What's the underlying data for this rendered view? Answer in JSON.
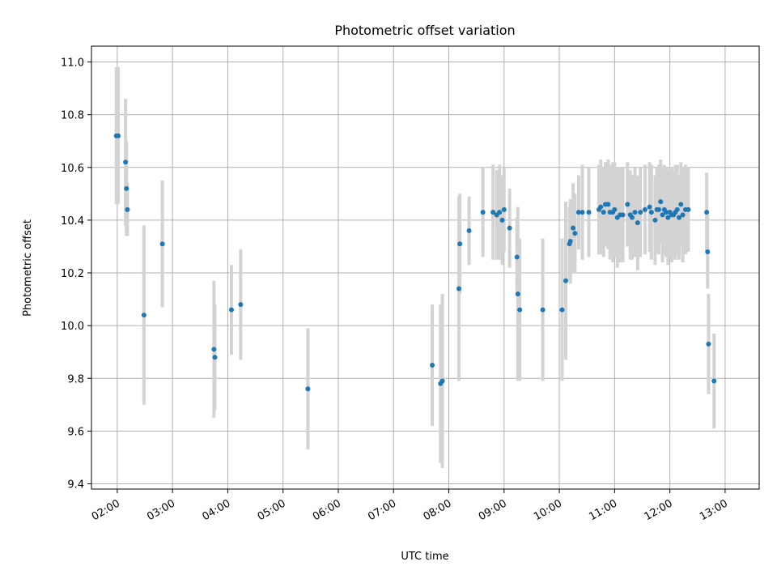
{
  "chart_data": {
    "type": "scatter",
    "title": "Photometric offset variation",
    "xlabel": "UTC time",
    "ylabel": "Photometric offset",
    "x_tick_labels": [
      "02:00",
      "03:00",
      "04:00",
      "05:00",
      "06:00",
      "07:00",
      "08:00",
      "09:00",
      "10:00",
      "11:00",
      "12:00",
      "13:00"
    ],
    "y_tick_labels": [
      "9.4",
      "9.6",
      "9.8",
      "10.0",
      "10.2",
      "10.4",
      "10.6",
      "10.8",
      "11.0"
    ],
    "grid": true,
    "colors": {
      "points": "#1f77b4",
      "errorbars": "#d3d3d3",
      "grid": "#b0b0b0"
    },
    "series": [
      {
        "x": [
          "01:59",
          "02:01",
          "02:09",
          "02:10",
          "02:11",
          "02:29",
          "02:49",
          "03:45",
          "03:46",
          "04:04",
          "04:14",
          "05:27",
          "07:42",
          "07:51",
          "07:53",
          "08:11",
          "08:12",
          "08:22",
          "08:37",
          "08:48",
          "08:52",
          "08:55",
          "08:58",
          "09:00",
          "09:06",
          "09:14",
          "09:15",
          "09:17",
          "09:42",
          "10:03",
          "10:07",
          "10:11",
          "10:12",
          "10:15",
          "10:17",
          "10:21",
          "10:25",
          "10:32",
          "10:43",
          "10:45",
          "10:48",
          "10:50",
          "10:53",
          "10:55",
          "10:58",
          "11:00",
          "11:03",
          "11:06",
          "11:09",
          "11:14",
          "11:17",
          "11:19",
          "11:22",
          "11:25",
          "11:28",
          "11:33",
          "11:38",
          "11:40",
          "11:44",
          "11:46",
          "11:48",
          "11:50",
          "11:52",
          "11:54",
          "11:56",
          "11:58",
          "12:00",
          "12:02",
          "12:04",
          "12:06",
          "12:08",
          "12:10",
          "12:12",
          "12:14",
          "12:17",
          "12:20",
          "12:40",
          "12:41",
          "12:42",
          "12:48"
        ],
        "y": [
          10.72,
          10.72,
          10.62,
          10.52,
          10.44,
          10.04,
          10.31,
          9.91,
          9.88,
          10.06,
          10.08,
          9.76,
          9.85,
          9.78,
          9.79,
          10.14,
          10.31,
          10.36,
          10.43,
          10.43,
          10.42,
          10.43,
          10.4,
          10.44,
          10.37,
          10.26,
          10.12,
          10.06,
          10.06,
          10.06,
          10.17,
          10.31,
          10.32,
          10.37,
          10.35,
          10.43,
          10.43,
          10.43,
          10.44,
          10.45,
          10.43,
          10.46,
          10.46,
          10.43,
          10.43,
          10.44,
          10.41,
          10.42,
          10.42,
          10.46,
          10.42,
          10.41,
          10.43,
          10.39,
          10.43,
          10.44,
          10.45,
          10.43,
          10.4,
          10.44,
          10.44,
          10.47,
          10.42,
          10.44,
          10.43,
          10.41,
          10.43,
          10.42,
          10.42,
          10.43,
          10.44,
          10.41,
          10.46,
          10.42,
          10.44,
          10.44,
          10.43,
          10.28,
          9.93,
          9.79
        ],
        "yerr": [
          0.26,
          0.26,
          0.24,
          0.18,
          0.1,
          0.34,
          0.24,
          0.26,
          0.2,
          0.17,
          0.21,
          0.23,
          0.23,
          0.3,
          0.33,
          0.35,
          0.19,
          0.13,
          0.17,
          0.18,
          0.17,
          0.18,
          0.17,
          0.16,
          0.15,
          0.15,
          0.33,
          0.27,
          0.27,
          0.27,
          0.3,
          0.14,
          0.16,
          0.17,
          0.15,
          0.14,
          0.18,
          0.17,
          0.17,
          0.18,
          0.17,
          0.16,
          0.17,
          0.18,
          0.19,
          0.18,
          0.19,
          0.18,
          0.18,
          0.16,
          0.17,
          0.16,
          0.17,
          0.18,
          0.17,
          0.17,
          0.17,
          0.18,
          0.17,
          0.16,
          0.17,
          0.16,
          0.18,
          0.17,
          0.17,
          0.18,
          0.17,
          0.18,
          0.17,
          0.18,
          0.17,
          0.16,
          0.16,
          0.18,
          0.17,
          0.16,
          0.15,
          0.14,
          0.19,
          0.18
        ]
      }
    ],
    "xlim": [
      "01:32",
      "13:37"
    ],
    "ylim": [
      9.38,
      11.06
    ]
  }
}
